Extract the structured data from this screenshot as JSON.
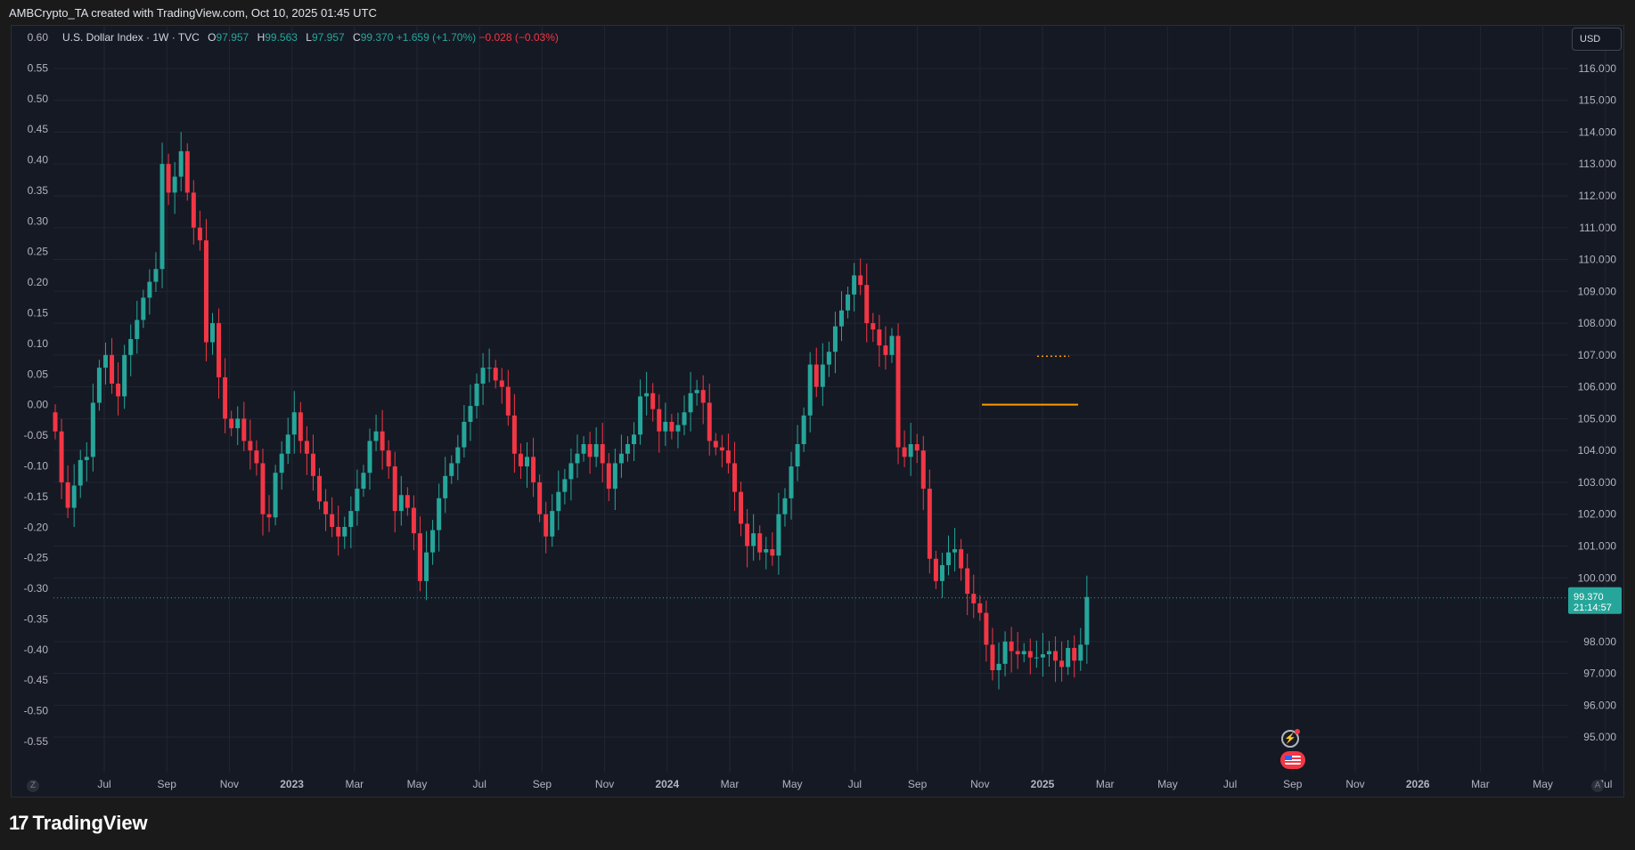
{
  "header": {
    "text": "AMBCrypto_TA created with TradingView.com, Oct 10, 2025 01:45 UTC"
  },
  "legend": {
    "symbol": "U.S. Dollar Index · 1W · TVC",
    "open_label": "O",
    "open": "97.957",
    "high_label": "H",
    "high": "99.563",
    "low_label": "L",
    "low": "97.957",
    "close_label": "C",
    "close": "99.370",
    "change": "+1.659 (+1.70%)",
    "change2": "−0.028 (−0.03%)"
  },
  "currency_button": "USD",
  "price_label": {
    "price": "99.370",
    "countdown": "21:14:57"
  },
  "footer": {
    "brand": "TradingView"
  },
  "colors": {
    "up": "#26a69a",
    "down": "#f23645",
    "background": "#151924",
    "grid": "#222633",
    "text": "#b2b5be",
    "orange": "#ff9800"
  },
  "icons": [
    "bolt-icon",
    "us-flag-icon",
    "zoom-z-icon",
    "auto-scale-icon"
  ],
  "chart_data": {
    "type": "candlestick",
    "title": "U.S. Dollar Index · 1W · TVC",
    "right_axis": {
      "ticks": [
        "116.000",
        "115.000",
        "114.000",
        "113.000",
        "112.000",
        "111.000",
        "110.000",
        "109.000",
        "108.000",
        "107.000",
        "106.000",
        "105.000",
        "104.000",
        "103.000",
        "102.000",
        "101.000",
        "100.000",
        "98.000",
        "97.000",
        "96.000",
        "95.000"
      ],
      "range": [
        94.5,
        116.5
      ]
    },
    "left_axis": {
      "ticks": [
        "0.60",
        "0.55",
        "0.50",
        "0.45",
        "0.40",
        "0.35",
        "0.30",
        "0.25",
        "0.20",
        "0.15",
        "0.10",
        "0.05",
        "0.00",
        "-0.05",
        "-0.10",
        "-0.15",
        "-0.20",
        "-0.25",
        "-0.30",
        "-0.35",
        "-0.40",
        "-0.45",
        "-0.50",
        "-0.55"
      ]
    },
    "x_axis": {
      "ticks": [
        "Jul",
        "Sep",
        "Nov",
        "2023",
        "Mar",
        "May",
        "Jul",
        "Sep",
        "Nov",
        "2024",
        "Mar",
        "May",
        "Jul",
        "Sep",
        "Nov",
        "2025",
        "Mar",
        "May",
        "Jul",
        "Sep",
        "Nov",
        "2026",
        "Mar",
        "May",
        "Jul"
      ],
      "bold": [
        "2023",
        "2024",
        "2025",
        "2026"
      ]
    },
    "close": [
      104.6,
      103.0,
      102.2,
      102.9,
      103.7,
      103.8,
      105.5,
      106.6,
      107.0,
      106.1,
      105.7,
      107.0,
      107.5,
      108.1,
      108.8,
      109.3,
      109.7,
      113.0,
      112.1,
      112.6,
      113.4,
      112.1,
      111.0,
      110.6,
      107.4,
      108.0,
      106.3,
      105.0,
      104.7,
      105.0,
      104.3,
      104.0,
      103.6,
      102.0,
      101.9,
      103.3,
      103.9,
      104.5,
      105.2,
      104.3,
      103.9,
      103.2,
      102.4,
      102.0,
      101.6,
      101.3,
      101.6,
      102.1,
      102.8,
      103.3,
      104.3,
      104.6,
      104.0,
      103.5,
      102.1,
      102.6,
      102.2,
      101.4,
      99.9,
      100.8,
      101.5,
      102.5,
      103.2,
      103.6,
      104.1,
      104.9,
      105.4,
      106.1,
      106.6,
      106.6,
      106.2,
      106.0,
      105.1,
      103.9,
      103.5,
      103.8,
      103.0,
      102.0,
      101.3,
      102.1,
      102.7,
      103.1,
      103.6,
      103.9,
      104.2,
      103.8,
      104.2,
      103.6,
      102.8,
      103.6,
      103.9,
      104.2,
      104.5,
      105.7,
      105.8,
      105.3,
      104.6,
      104.9,
      104.6,
      104.8,
      105.2,
      105.8,
      105.9,
      105.5,
      104.3,
      104.1,
      104.0,
      103.6,
      102.7,
      101.7,
      101.0,
      101.4,
      100.8,
      100.9,
      100.7,
      102.0,
      102.5,
      103.5,
      104.2,
      105.1,
      106.7,
      106.0,
      106.7,
      107.1,
      107.9,
      108.4,
      108.9,
      109.5,
      109.2,
      108.0,
      107.8,
      107.3,
      107.0,
      107.6,
      104.1,
      103.8,
      104.2,
      104.0,
      102.8,
      100.6,
      99.9,
      100.4,
      100.8,
      100.9,
      100.3,
      99.5,
      99.2,
      98.9,
      97.9,
      97.1,
      97.3,
      98.0,
      97.7,
      97.6,
      97.7,
      97.5,
      97.5,
      97.6,
      97.7,
      97.4,
      97.2,
      97.8,
      97.4,
      97.9,
      99.4
    ],
    "visible_bars": 156,
    "x_start": "2022-06 (week)",
    "last_price": 99.37,
    "horizontal_line": {
      "price": 105.44,
      "color": "#ff9800"
    },
    "dotted_line": {
      "price": 106.96,
      "color": "#ff9800"
    }
  }
}
